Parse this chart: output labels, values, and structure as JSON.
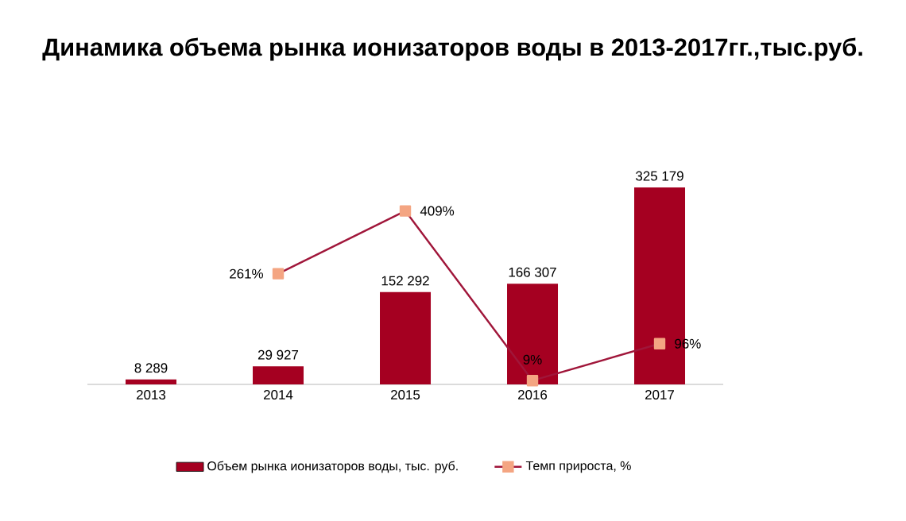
{
  "chart_data": {
    "type": "bar",
    "title": "Динамика объема рынка ионизаторов воды в 2013-2017гг.,тыс.руб.",
    "categories": [
      "2013",
      "2014",
      "2015",
      "2016",
      "2017"
    ],
    "series": [
      {
        "name": "Объем рынка ионизаторов воды, тыс. руб.",
        "color": "#a50021",
        "values": [
          8289,
          29927,
          152292,
          166307,
          325179
        ],
        "value_labels": [
          "8 289",
          "29 927",
          "152 292",
          "166 307",
          "325 179"
        ]
      },
      {
        "name": "Темп прироста, %",
        "type": "line",
        "axis": "y2",
        "color": "#a0163a",
        "values": [
          null,
          261,
          409,
          9,
          96
        ],
        "value_labels": [
          null,
          "261%",
          "409%",
          "9%",
          "96%"
        ]
      }
    ],
    "tick_labels": "x",
    "legend": "bottom",
    "marker": "square",
    "line_style": "solid"
  }
}
